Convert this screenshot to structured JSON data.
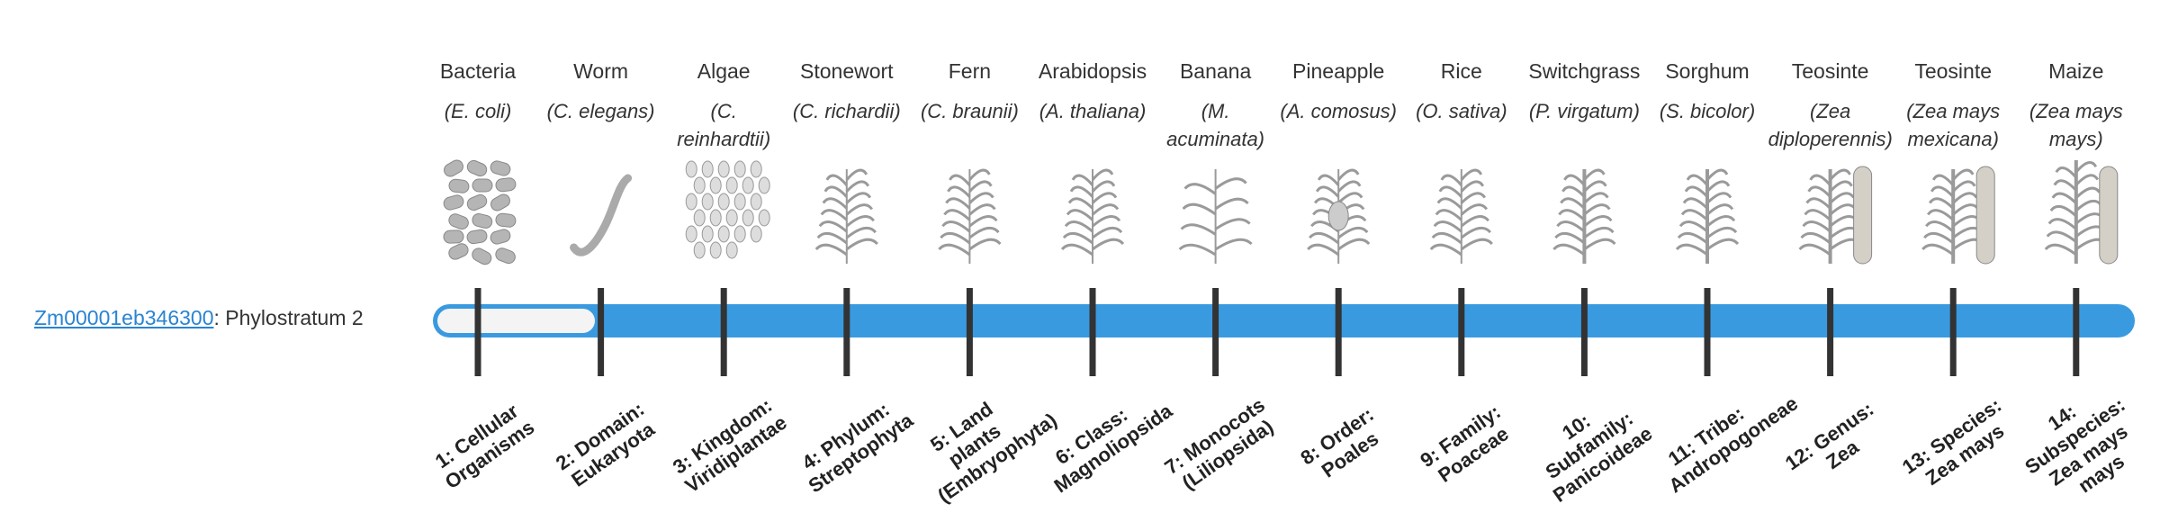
{
  "gene": {
    "id": "Zm00001eb346300",
    "label": ": Phylostratum 2"
  },
  "strata": [
    {
      "name": "Bacteria",
      "species": "(E. coli)",
      "rank": "1: Cellular Organisms"
    },
    {
      "name": "Worm",
      "species": "(C. elegans)",
      "rank": "2: Domain: Eukaryota"
    },
    {
      "name": "Algae",
      "species": "(C. reinhardtii)",
      "rank": "3: Kingdom: Viridiplantae"
    },
    {
      "name": "Stonewort",
      "species": "(C. richardii)",
      "rank": "4: Phylum: Streptophyta"
    },
    {
      "name": "Fern",
      "species": "(C. braunii)",
      "rank": "5: Land plants (Embryophyta)"
    },
    {
      "name": "Arabidopsis",
      "species": "(A. thaliana)",
      "rank": "6: Class: Magnoliopsida"
    },
    {
      "name": "Banana",
      "species": "(M. acuminata)",
      "rank": "7: Monocots (Liliopsida)"
    },
    {
      "name": "Pineapple",
      "species": "(A. comosus)",
      "rank": "8: Order: Poales"
    },
    {
      "name": "Rice",
      "species": "(O. sativa)",
      "rank": "9: Family: Poaceae"
    },
    {
      "name": "Switchgrass",
      "species": "(P. virgatum)",
      "rank": "10: Subfamily: Panicoideae"
    },
    {
      "name": "Sorghum",
      "species": "(S. bicolor)",
      "rank": "11: Tribe: Andropogoneae"
    },
    {
      "name": "Teosinte",
      "species": "(Zea diploperennis)",
      "rank": "12: Genus: Zea"
    },
    {
      "name": "Teosinte",
      "species": "(Zea mays mexicana)",
      "rank": "13: Species: Zea mays"
    },
    {
      "name": "Maize",
      "species": "(Zea mays mays)",
      "rank": "14: Subspecies: Zea mays mays"
    }
  ]
}
